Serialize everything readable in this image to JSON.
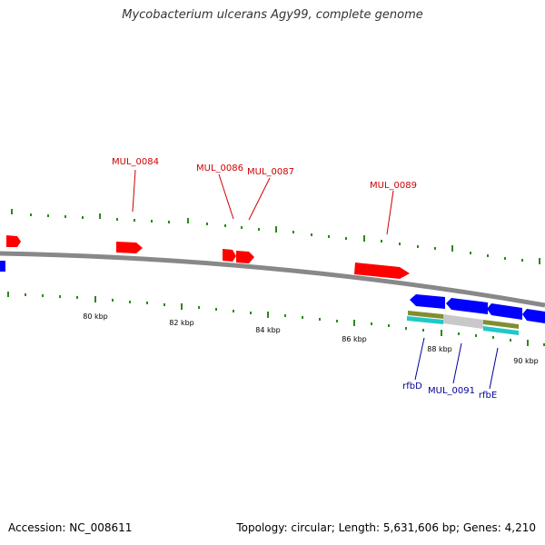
{
  "title": "Mycobacterium ulcerans Agy99, complete genome",
  "footer": {
    "accession": "Accession: NC_008611",
    "topology": "Topology: circular; Length: 5,631,606 bp; Genes: 4,210"
  },
  "scale": {
    "labels": [
      "80 kbp",
      "82 kbp",
      "84 kbp",
      "86 kbp",
      "88 kbp",
      "90 kbp"
    ]
  },
  "top_genes": {
    "labels": [
      "MUL_0084",
      "MUL_0086",
      "MUL_0087",
      "MUL_0089"
    ]
  },
  "bottom_genes": {
    "labels": [
      "rfbD",
      "MUL_0091",
      "rfbE"
    ]
  },
  "colors": {
    "forward_gene": "#ff0000",
    "reverse_gene": "#0000ff",
    "top_label": "#cc0000",
    "bottom_label": "#000099",
    "backbone": "#888888",
    "ticks": "#2a8a1a",
    "track_olive": "#7f8f30",
    "track_gray": "#c8c8c8",
    "track_cyan": "#20c8c8"
  }
}
